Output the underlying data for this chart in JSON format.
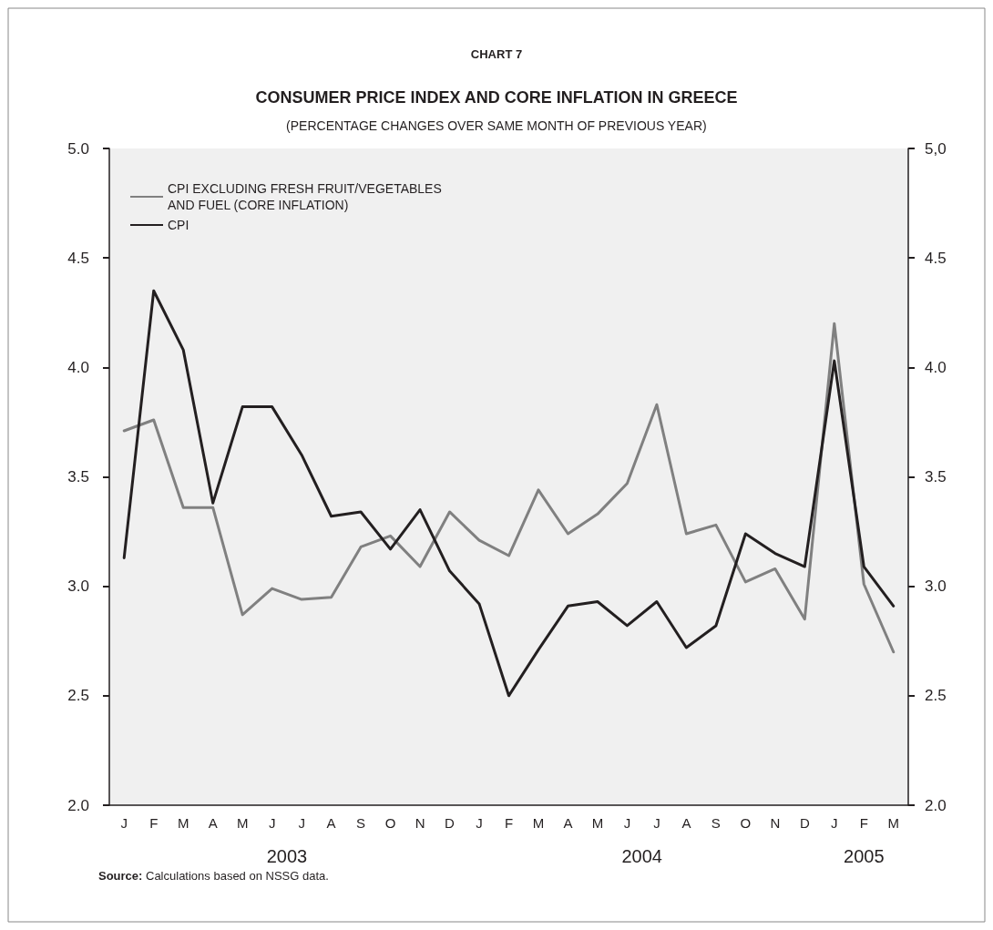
{
  "chart_data": {
    "type": "line",
    "title": "CHART 7",
    "subtitle": "CONSUMER PRICE INDEX AND CORE INFLATION IN GREECE",
    "categories": [
      "J",
      "F",
      "M",
      "A",
      "M",
      "J",
      "J",
      "A",
      "S",
      "O",
      "N",
      "D",
      "J",
      "F",
      "M",
      "A",
      "M",
      "J",
      "J",
      "A",
      "S",
      "O",
      "N",
      "D",
      "J",
      "F",
      "M"
    ],
    "series": [
      {
        "name": "CPI EXCLUDING FRESH FRUIT/VEGETABLES\nAND FUEL (CORE INFLATION)",
        "color": "#808080",
        "values": [
          3.71,
          3.76,
          3.36,
          3.36,
          2.87,
          2.99,
          2.94,
          2.95,
          3.18,
          3.23,
          3.09,
          3.34,
          3.21,
          3.14,
          3.44,
          3.24,
          3.33,
          3.47,
          3.83,
          3.24,
          3.28,
          3.02,
          3.08,
          2.85,
          4.2,
          3.01,
          2.7
        ]
      },
      {
        "name": "CPI",
        "color": "#231f20",
        "values": [
          3.13,
          4.35,
          4.08,
          3.38,
          3.82,
          3.82,
          3.6,
          3.32,
          3.34,
          3.17,
          3.35,
          3.07,
          2.92,
          2.5,
          2.71,
          2.91,
          2.93,
          2.82,
          2.93,
          2.72,
          2.82,
          3.24,
          3.15,
          3.09,
          4.03,
          3.09,
          2.91
        ]
      }
    ],
    "ylim": [
      2,
      5
    ],
    "yticks": [
      {
        "value": 2,
        "label": "2.0"
      },
      {
        "value": 2.5,
        "label": "2.5"
      },
      {
        "value": 3,
        "label": "3.0"
      },
      {
        "value": 3.5,
        "label": "3.5"
      },
      {
        "value": 4,
        "label": "4.0"
      },
      {
        "value": 4.5,
        "label": "4.5"
      },
      {
        "value": 5,
        "label": "5.0"
      }
    ],
    "y2lim": [
      2,
      5
    ],
    "y2ticks": [
      {
        "value": 2,
        "label": "2.0"
      },
      {
        "value": 2.5,
        "label": "2.5"
      },
      {
        "value": 3,
        "label": "3.0"
      },
      {
        "value": 3.5,
        "label": "3.5"
      },
      {
        "value": 4,
        "label": "4.0"
      },
      {
        "value": 4.5,
        "label": "4.5"
      },
      {
        "value": 5,
        "label": "5,0"
      }
    ],
    "annotations": [
      "(PERCENTAGE CHANGES OVER SAME MONTH OF PREVIOUS YEAR)",
      "2003",
      "2004",
      "2005",
      "Source: Calculations based on NSSG data."
    ],
    "legend": "top left",
    "grid": false,
    "marker": "none",
    "line_style": "solid"
  }
}
